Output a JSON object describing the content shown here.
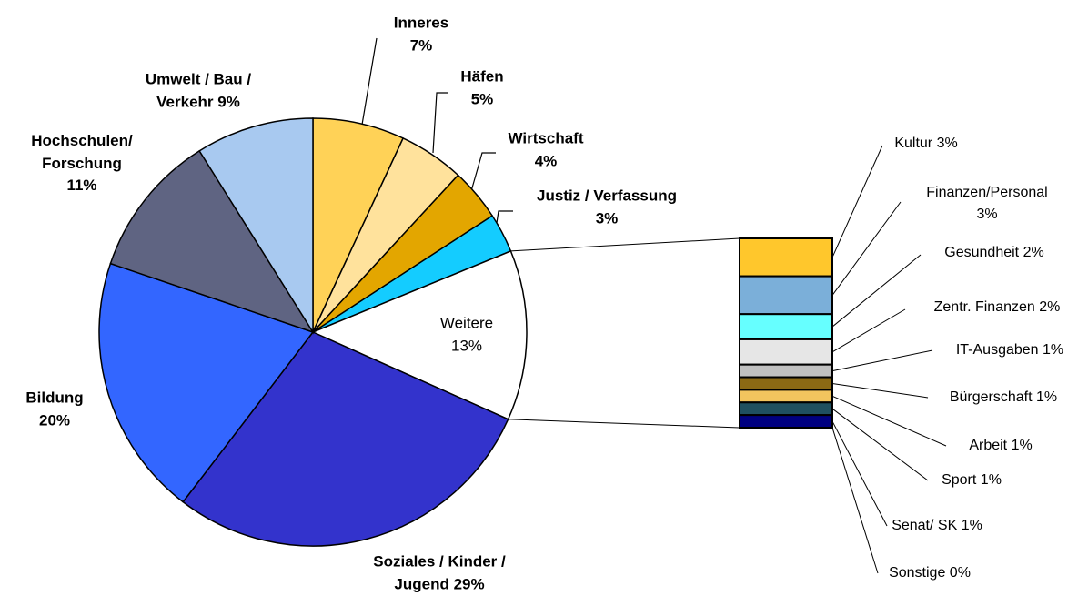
{
  "chart_data": {
    "type": "pie",
    "categories": [
      "Inneres",
      "Häfen",
      "Wirtschaft",
      "Justiz / Verfassung",
      "Weitere",
      "Soziales / Kinder / Jugend",
      "Bildung",
      "Hochschulen/ Forschung",
      "Umwelt / Bau / Verkehr"
    ],
    "values": [
      7,
      5,
      4,
      3,
      13,
      29,
      20,
      11,
      9
    ],
    "value_labels": [
      "7%",
      "5%",
      "4%",
      "3%",
      "13%",
      "29%",
      "20%",
      "11%",
      "9%"
    ],
    "colors": [
      "#ffd257",
      "#ffe29c",
      "#e3a600",
      "#14ccff",
      "#ffffff",
      "#3333cc",
      "#3366ff",
      "#5f6482",
      "#a8c9f0"
    ],
    "bar": {
      "categories": [
        "Kultur",
        "Finanzen/Personal",
        "Gesundheit",
        "Zentr. Finanzen",
        "IT-Ausgaben",
        "Bürgerschaft",
        "Arbeit",
        "Sport",
        "Senat/ SK",
        "Sonstige"
      ],
      "values": [
        3,
        3,
        2,
        2,
        1,
        1,
        1,
        1,
        1,
        0
      ],
      "value_labels": [
        "3%",
        "3%",
        "2%",
        "2%",
        "1%",
        "1%",
        "1%",
        "1%",
        "1%",
        "0%"
      ],
      "colors": [
        "#ffc72c",
        "#7bafd9",
        "#66ffff",
        "#e6e6e6",
        "#c0c0c0",
        "#8b6914",
        "#f2c45e",
        "#1f5060",
        "#000080",
        "#ffffff"
      ]
    }
  }
}
